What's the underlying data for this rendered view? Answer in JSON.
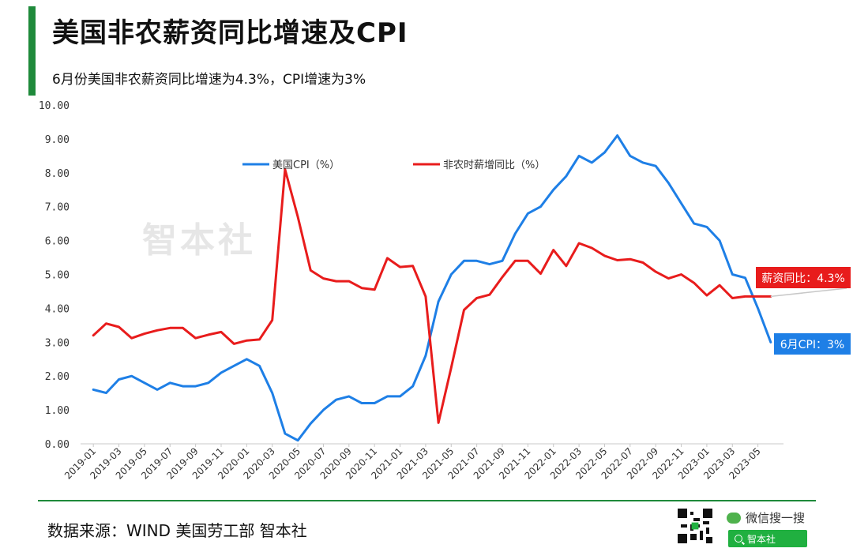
{
  "header": {
    "title": "美国非农薪资同比增速及CPI",
    "subtitle": "6月份美国非农薪资同比增速为4.3%，CPI增速为3%"
  },
  "watermark": "智本社",
  "footer": {
    "source": "数据来源：WIND  美国劳工部 智本社",
    "wechat_label": "微信搜一搜",
    "search_label": "智本社"
  },
  "colors": {
    "accent": "#1f8a3b",
    "cpi": "#1e7fe6",
    "wage": "#e81c1c"
  },
  "chart_data": {
    "type": "line",
    "title": "美国非农薪资同比增速及CPI",
    "ylim": [
      0,
      10
    ],
    "yticks": [
      "0.00",
      "1.00",
      "2.00",
      "3.00",
      "4.00",
      "5.00",
      "6.00",
      "7.00",
      "8.00",
      "9.00",
      "10.00"
    ],
    "xtick_labels": [
      "2019-01",
      "2019-03",
      "2019-05",
      "2019-07",
      "2019-09",
      "2019-11",
      "2020-01",
      "2020-03",
      "2020-05",
      "2020-07",
      "2020-09",
      "2020-11",
      "2021-01",
      "2021-03",
      "2021-05",
      "2021-07",
      "2021-09",
      "2021-11",
      "2022-01",
      "2022-03",
      "2022-05",
      "2022-07",
      "2022-09",
      "2022-11",
      "2023-01",
      "2023-03",
      "2023-05"
    ],
    "x": [
      "2019-01",
      "2019-02",
      "2019-03",
      "2019-04",
      "2019-05",
      "2019-06",
      "2019-07",
      "2019-08",
      "2019-09",
      "2019-10",
      "2019-11",
      "2019-12",
      "2020-01",
      "2020-02",
      "2020-03",
      "2020-04",
      "2020-05",
      "2020-06",
      "2020-07",
      "2020-08",
      "2020-09",
      "2020-10",
      "2020-11",
      "2020-12",
      "2021-01",
      "2021-02",
      "2021-03",
      "2021-04",
      "2021-05",
      "2021-06",
      "2021-07",
      "2021-08",
      "2021-09",
      "2021-10",
      "2021-11",
      "2021-12",
      "2022-01",
      "2022-02",
      "2022-03",
      "2022-04",
      "2022-05",
      "2022-06",
      "2022-07",
      "2022-08",
      "2022-09",
      "2022-10",
      "2022-11",
      "2022-12",
      "2023-01",
      "2023-02",
      "2023-03",
      "2023-04",
      "2023-05",
      "2023-06"
    ],
    "series": [
      {
        "name": "美国CPI（%）",
        "color": "#1e7fe6",
        "values": [
          1.6,
          1.5,
          1.9,
          2.0,
          1.8,
          1.6,
          1.8,
          1.7,
          1.7,
          1.8,
          2.1,
          2.3,
          2.5,
          2.3,
          1.5,
          0.3,
          0.1,
          0.6,
          1.0,
          1.3,
          1.4,
          1.2,
          1.2,
          1.4,
          1.4,
          1.7,
          2.6,
          4.2,
          5.0,
          5.4,
          5.4,
          5.3,
          5.4,
          6.2,
          6.8,
          7.0,
          7.5,
          7.9,
          8.5,
          8.3,
          8.6,
          9.1,
          8.5,
          8.3,
          8.2,
          7.7,
          7.1,
          6.5,
          6.4,
          6.0,
          5.0,
          4.9,
          4.0,
          3.0
        ]
      },
      {
        "name": "非农时薪增同比（%）",
        "color": "#e81c1c",
        "values": [
          3.2,
          3.55,
          3.45,
          3.12,
          3.25,
          3.35,
          3.42,
          3.42,
          3.12,
          3.22,
          3.3,
          2.95,
          3.05,
          3.08,
          3.65,
          8.1,
          6.7,
          5.12,
          4.88,
          4.8,
          4.8,
          4.6,
          4.55,
          5.48,
          5.22,
          5.25,
          4.35,
          0.62,
          2.25,
          3.95,
          4.3,
          4.4,
          4.92,
          5.4,
          5.4,
          5.02,
          5.72,
          5.25,
          5.92,
          5.78,
          5.55,
          5.42,
          5.45,
          5.35,
          5.08,
          4.88,
          5.0,
          4.75,
          4.38,
          4.68,
          4.3,
          4.35,
          4.35,
          4.35
        ]
      }
    ],
    "annotations": [
      {
        "text": "薪资同比：4.3%",
        "series": 1,
        "x": "2023-06",
        "y": 4.35
      },
      {
        "text": "6月CPI：3%",
        "series": 0,
        "x": "2023-06",
        "y": 3.0
      }
    ],
    "legend": "top-center",
    "grid": false
  }
}
